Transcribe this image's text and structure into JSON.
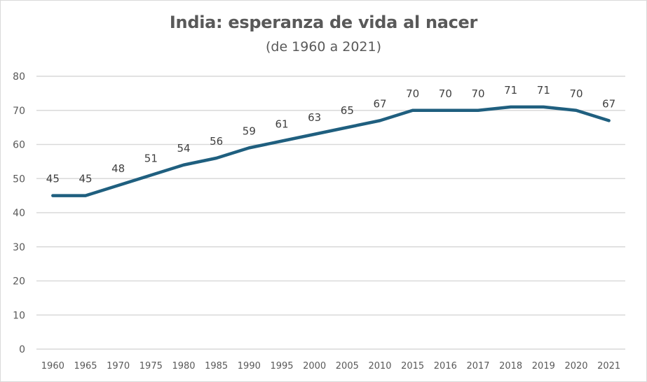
{
  "chart_data": {
    "type": "line",
    "title": "India: esperanza de vida al nacer",
    "subtitle": "(de 1960 a 2021)",
    "xlabel": "",
    "ylabel": "",
    "categories": [
      "1960",
      "1965",
      "1970",
      "1975",
      "1980",
      "1985",
      "1990",
      "1995",
      "2000",
      "2005",
      "2010",
      "2015",
      "2016",
      "2017",
      "2018",
      "2019",
      "2020",
      "2021"
    ],
    "series": [
      {
        "name": "Esperanza de vida al nacer",
        "values": [
          45,
          45,
          48,
          51,
          54,
          56,
          59,
          61,
          63,
          65,
          67,
          70,
          70,
          70,
          71,
          71,
          70,
          67
        ],
        "color": "#1f5f7f",
        "data_labels": true
      }
    ],
    "ylim": [
      0,
      80
    ],
    "yticks": [
      0,
      10,
      20,
      30,
      40,
      50,
      60,
      70,
      80
    ],
    "grid": true,
    "legend": "none"
  }
}
